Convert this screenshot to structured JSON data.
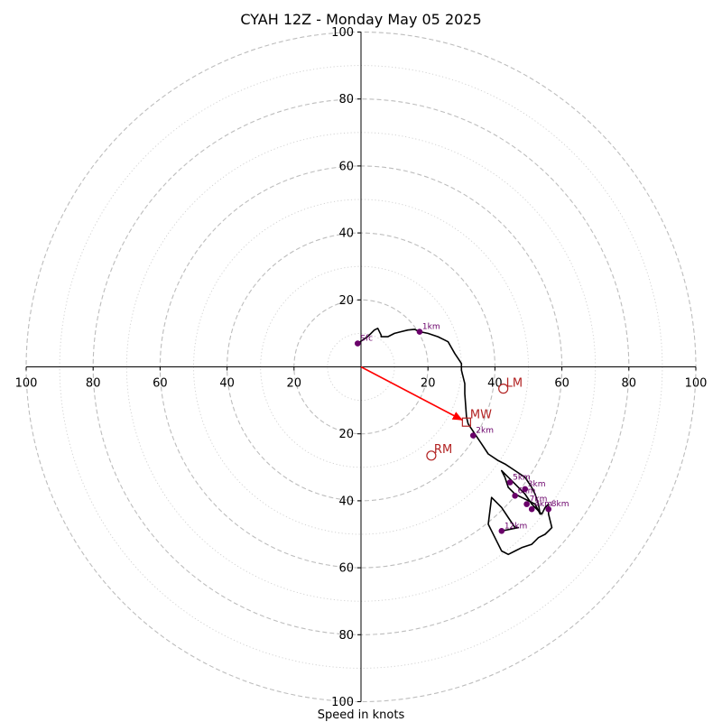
{
  "chart_data": {
    "type": "hodograph",
    "title": "CYAH 12Z - Monday May 05 2025",
    "xlabel": "Speed in knots",
    "units": "knots",
    "range": [
      0,
      100
    ],
    "ring_major_step": 20,
    "ring_minor_step": 10,
    "tick_labels": {
      "x": [
        "100",
        "80",
        "60",
        "40",
        "20",
        "20",
        "40",
        "60",
        "80",
        "100"
      ],
      "y": [
        "100",
        "80",
        "60",
        "40",
        "20",
        "20",
        "40",
        "60",
        "80",
        "100"
      ]
    },
    "wind_trace": [
      [
        -1,
        7
      ],
      [
        2,
        9
      ],
      [
        4,
        11
      ],
      [
        5,
        11.5
      ],
      [
        6,
        9.5
      ],
      [
        6,
        9
      ],
      [
        8,
        9
      ],
      [
        10,
        10
      ],
      [
        12,
        10.5
      ],
      [
        14,
        11
      ],
      [
        16,
        11.2
      ],
      [
        17.5,
        10.5
      ],
      [
        20,
        10
      ],
      [
        23,
        9
      ],
      [
        25,
        8
      ],
      [
        26,
        7.5
      ],
      [
        28,
        4
      ],
      [
        30,
        1
      ],
      [
        30,
        -1
      ],
      [
        31,
        -5
      ],
      [
        31,
        -6
      ],
      [
        31,
        -8
      ],
      [
        31.5,
        -15
      ],
      [
        32,
        -17
      ],
      [
        34,
        -20
      ],
      [
        36,
        -23
      ],
      [
        38,
        -26
      ],
      [
        41,
        -28
      ],
      [
        43,
        -29
      ],
      [
        46,
        -31
      ],
      [
        49,
        -33
      ],
      [
        51,
        -36
      ],
      [
        52,
        -38
      ],
      [
        53,
        -41
      ],
      [
        53.5,
        -44
      ],
      [
        52,
        -41
      ],
      [
        50,
        -40
      ],
      [
        48,
        -39
      ],
      [
        46,
        -38
      ],
      [
        44,
        -36
      ],
      [
        43,
        -33
      ],
      [
        42,
        -31
      ],
      [
        43,
        -32
      ],
      [
        45,
        -34
      ],
      [
        47,
        -36
      ],
      [
        49,
        -38
      ],
      [
        51,
        -41
      ],
      [
        53,
        -43
      ],
      [
        54,
        -44
      ],
      [
        55,
        -42
      ],
      [
        56,
        -41
      ],
      [
        56,
        -44
      ],
      [
        57,
        -48
      ],
      [
        56,
        -49
      ],
      [
        55,
        -50
      ],
      [
        53,
        -51
      ],
      [
        52,
        -52
      ],
      [
        51,
        -53
      ],
      [
        48,
        -54
      ],
      [
        46,
        -55
      ],
      [
        44,
        -56
      ],
      [
        42,
        -55
      ],
      [
        40,
        -51
      ],
      [
        38,
        -47
      ],
      [
        39,
        -39
      ],
      [
        42,
        -42
      ],
      [
        44,
        -45
      ],
      [
        46,
        -48
      ],
      [
        47,
        -48
      ],
      [
        42,
        -49
      ]
    ],
    "height_markers": [
      {
        "label": "Sfc",
        "u": -1,
        "v": 7
      },
      {
        "label": "1km",
        "u": 17.5,
        "v": 10.5
      },
      {
        "label": "2km",
        "u": 33.5,
        "v": -20.5
      },
      {
        "label": "3km",
        "u": 49,
        "v": -36.5
      },
      {
        "label": "4km",
        "u": 51,
        "v": -42.5
      },
      {
        "label": "5km",
        "u": 44.5,
        "v": -34.5
      },
      {
        "label": "6km",
        "u": 46,
        "v": -38.5
      },
      {
        "label": "7km",
        "u": 49.5,
        "v": -41
      },
      {
        "label": "8km",
        "u": 56,
        "v": -42.5
      },
      {
        "label": "12km",
        "u": 42,
        "v": -49
      }
    ],
    "storm_motion": {
      "MW": {
        "label": "MW",
        "u": 31.5,
        "v": -16.5
      },
      "LM": {
        "label": "LM",
        "u": 42.5,
        "v": -6.5
      },
      "RM": {
        "label": "RM",
        "u": 21,
        "v": -26.5
      }
    },
    "colors": {
      "trace": "#000000",
      "marker": "#6a006a",
      "storm": "#b22222",
      "arrow": "#ff0000",
      "ring_major": "#bdbdbd",
      "ring_minor": "#cfcfcf"
    }
  }
}
